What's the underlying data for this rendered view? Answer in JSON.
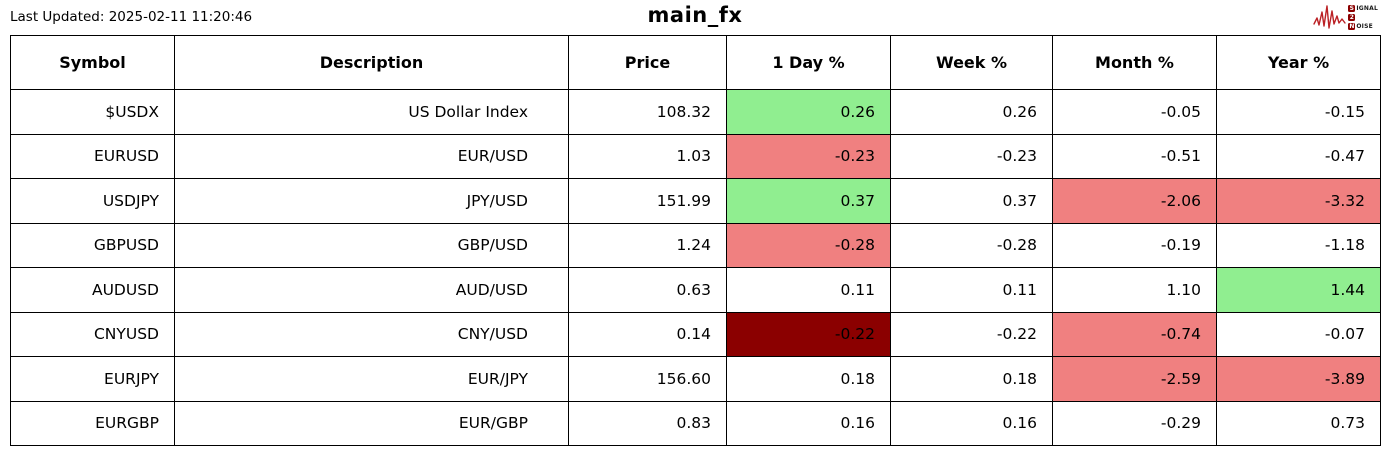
{
  "header": {
    "last_updated": "Last Updated: 2025-02-11 11:20:46",
    "title": "main_fx",
    "logo": {
      "icon": "signal-waveform-icon",
      "lines": [
        {
          "initial": "S",
          "rest": "IGNAL"
        },
        {
          "initial": "2",
          "rest": ""
        },
        {
          "initial": "N",
          "rest": "OISE"
        }
      ]
    }
  },
  "colors": {
    "green": "#90ee90",
    "red": "#f08080",
    "darkred": "#8b0000",
    "logo_red": "#bb2125",
    "border": "#000000"
  },
  "chart_data": {
    "type": "table",
    "title": "main_fx",
    "columns": [
      "Symbol",
      "Description",
      "Price",
      "1 Day %",
      "Week %",
      "Month %",
      "Year %"
    ],
    "legend_note": "cell bg: green = positive highlight, red = negative highlight, darkred = strong negative highlight",
    "rows": [
      {
        "cells": [
          {
            "text": "$USDX"
          },
          {
            "text": "US Dollar Index"
          },
          {
            "text": "108.32"
          },
          {
            "text": "0.26",
            "bg": "green"
          },
          {
            "text": "0.26"
          },
          {
            "text": "-0.05"
          },
          {
            "text": "-0.15"
          }
        ]
      },
      {
        "cells": [
          {
            "text": "EURUSD"
          },
          {
            "text": "EUR/USD"
          },
          {
            "text": "1.03"
          },
          {
            "text": "-0.23",
            "bg": "red"
          },
          {
            "text": "-0.23"
          },
          {
            "text": "-0.51"
          },
          {
            "text": "-0.47"
          }
        ]
      },
      {
        "cells": [
          {
            "text": "USDJPY"
          },
          {
            "text": "JPY/USD"
          },
          {
            "text": "151.99"
          },
          {
            "text": "0.37",
            "bg": "green"
          },
          {
            "text": "0.37"
          },
          {
            "text": "-2.06",
            "bg": "red"
          },
          {
            "text": "-3.32",
            "bg": "red"
          }
        ]
      },
      {
        "cells": [
          {
            "text": "GBPUSD"
          },
          {
            "text": "GBP/USD"
          },
          {
            "text": "1.24"
          },
          {
            "text": "-0.28",
            "bg": "red"
          },
          {
            "text": "-0.28"
          },
          {
            "text": "-0.19"
          },
          {
            "text": "-1.18"
          }
        ]
      },
      {
        "cells": [
          {
            "text": "AUDUSD"
          },
          {
            "text": "AUD/USD"
          },
          {
            "text": "0.63"
          },
          {
            "text": "0.11"
          },
          {
            "text": "0.11"
          },
          {
            "text": "1.10"
          },
          {
            "text": "1.44",
            "bg": "green"
          }
        ]
      },
      {
        "cells": [
          {
            "text": "CNYUSD"
          },
          {
            "text": "CNY/USD"
          },
          {
            "text": "0.14"
          },
          {
            "text": "-0.22",
            "bg": "darkred"
          },
          {
            "text": "-0.22"
          },
          {
            "text": "-0.74",
            "bg": "red"
          },
          {
            "text": "-0.07"
          }
        ]
      },
      {
        "cells": [
          {
            "text": "EURJPY"
          },
          {
            "text": "EUR/JPY"
          },
          {
            "text": "156.60"
          },
          {
            "text": "0.18"
          },
          {
            "text": "0.18"
          },
          {
            "text": "-2.59",
            "bg": "red"
          },
          {
            "text": "-3.89",
            "bg": "red"
          }
        ]
      },
      {
        "cells": [
          {
            "text": "EURGBP"
          },
          {
            "text": "EUR/GBP"
          },
          {
            "text": "0.83"
          },
          {
            "text": "0.16"
          },
          {
            "text": "0.16"
          },
          {
            "text": "-0.29"
          },
          {
            "text": "0.73"
          }
        ]
      }
    ]
  }
}
